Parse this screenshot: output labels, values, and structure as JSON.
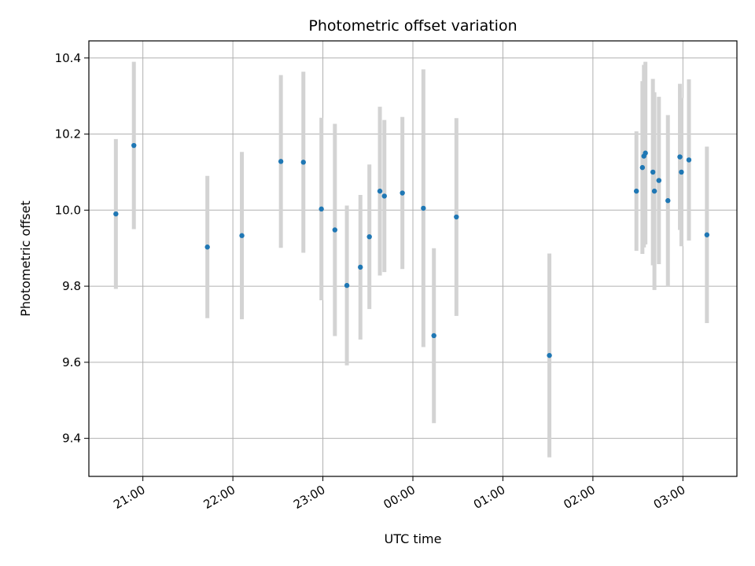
{
  "chart_data": {
    "type": "scatter",
    "title": "Photometric offset variation",
    "xlabel": "UTC time",
    "ylabel": "Photometric offset",
    "grid": true,
    "xlim": [
      "20:24",
      "03:36"
    ],
    "ylim": [
      9.3,
      10.445
    ],
    "x_ticks": [
      "21:00",
      "22:00",
      "23:00",
      "00:00",
      "01:00",
      "02:00",
      "03:00"
    ],
    "y_ticks": [
      9.4,
      9.6,
      9.8,
      10.0,
      10.2,
      10.4
    ],
    "colors": {
      "point": "#1f77b4",
      "errorbar": "#d3d3d3"
    },
    "points": [
      {
        "x": "20:42",
        "y": 9.99,
        "yerr": 0.197
      },
      {
        "x": "20:54",
        "y": 10.17,
        "yerr": 0.22
      },
      {
        "x": "21:43",
        "y": 9.903,
        "yerr": 0.187
      },
      {
        "x": "22:06",
        "y": 9.933,
        "yerr": 0.22
      },
      {
        "x": "22:32",
        "y": 10.128,
        "yerr": 0.227
      },
      {
        "x": "22:47",
        "y": 10.126,
        "yerr": 0.238
      },
      {
        "x": "22:59",
        "y": 10.003,
        "yerr": 0.24
      },
      {
        "x": "23:08",
        "y": 9.948,
        "yerr": 0.279
      },
      {
        "x": "23:16",
        "y": 9.802,
        "yerr": 0.21
      },
      {
        "x": "23:25",
        "y": 9.85,
        "yerr": 0.19
      },
      {
        "x": "23:31",
        "y": 9.93,
        "yerr": 0.19
      },
      {
        "x": "23:38",
        "y": 10.05,
        "yerr": 0.222
      },
      {
        "x": "23:41",
        "y": 10.037,
        "yerr": 0.2
      },
      {
        "x": "23:53",
        "y": 10.045,
        "yerr": 0.2
      },
      {
        "x": "00:07",
        "y": 10.005,
        "yerr": 0.365
      },
      {
        "x": "00:14",
        "y": 9.67,
        "yerr": 0.23
      },
      {
        "x": "00:29",
        "y": 9.982,
        "yerr": 0.26
      },
      {
        "x": "01:31",
        "y": 9.618,
        "yerr": 0.268
      },
      {
        "x": "02:29",
        "y": 10.05,
        "yerr": 0.157
      },
      {
        "x": "02:33",
        "y": 10.112,
        "yerr": 0.227
      },
      {
        "x": "02:34",
        "y": 10.142,
        "yerr": 0.24
      },
      {
        "x": "02:35",
        "y": 10.15,
        "yerr": 0.24
      },
      {
        "x": "02:40",
        "y": 10.1,
        "yerr": 0.245
      },
      {
        "x": "02:41",
        "y": 10.05,
        "yerr": 0.26
      },
      {
        "x": "02:44",
        "y": 10.078,
        "yerr": 0.22
      },
      {
        "x": "02:50",
        "y": 10.025,
        "yerr": 0.225
      },
      {
        "x": "02:58",
        "y": 10.14,
        "yerr": 0.192
      },
      {
        "x": "02:59",
        "y": 10.1,
        "yerr": 0.195
      },
      {
        "x": "03:04",
        "y": 10.132,
        "yerr": 0.212
      },
      {
        "x": "03:16",
        "y": 9.935,
        "yerr": 0.232
      }
    ]
  }
}
